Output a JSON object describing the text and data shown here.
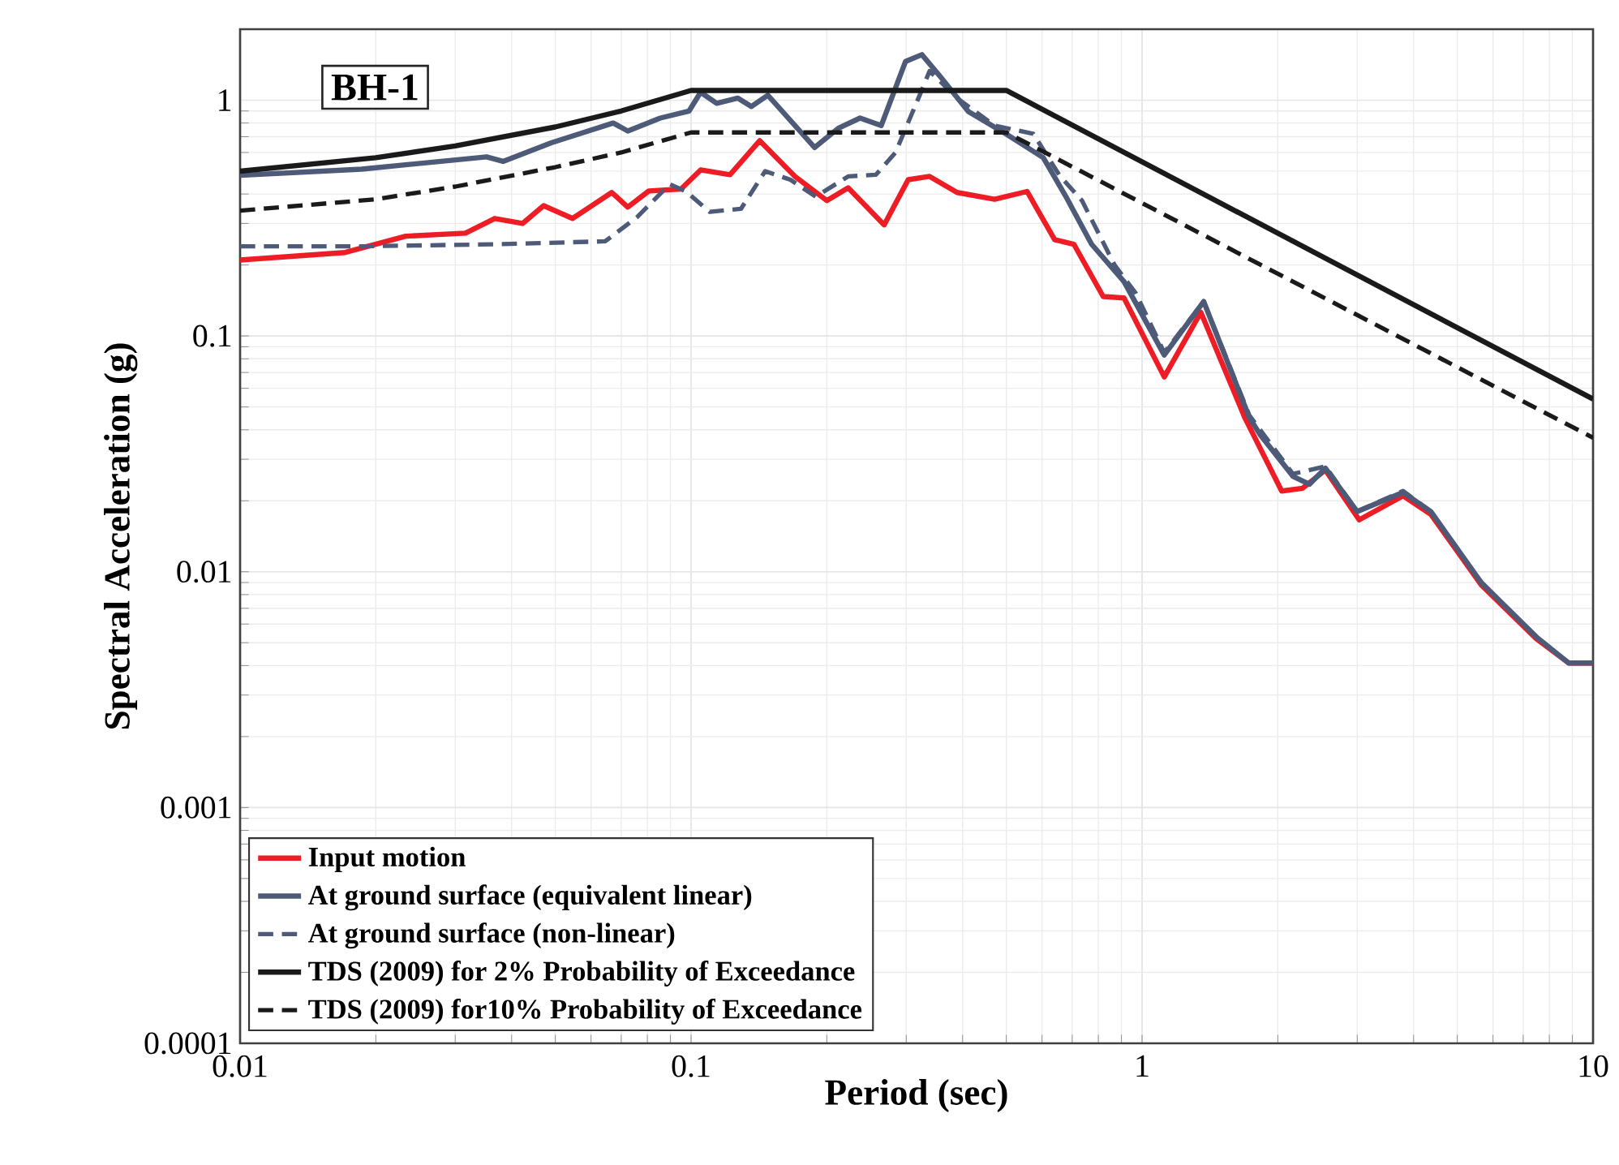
{
  "chart_data": {
    "type": "line",
    "xlabel": "Period (sec)",
    "ylabel": "Spectral Acceleration (g)",
    "log": "xy",
    "grid": true,
    "legend": "bottom left",
    "marker": "none",
    "xlim": [
      0.01,
      10
    ],
    "xticks": [
      0.01,
      0.1,
      1,
      10
    ],
    "ylim": [
      0.0001,
      2
    ],
    "yticks": [
      0.0001,
      0.001,
      0.01,
      0.1,
      1
    ],
    "annotations": [
      "BH-1"
    ],
    "series": [
      {
        "name": "Input motion",
        "color": "#ee1c25",
        "line_style": "solid",
        "x": [
          0.01,
          0.0171,
          0.0233,
          0.0316,
          0.0367,
          0.0423,
          0.0471,
          0.0546,
          0.0667,
          0.0724,
          0.0806,
          0.095,
          0.105,
          0.122,
          0.142,
          0.17,
          0.2,
          0.223,
          0.268,
          0.303,
          0.338,
          0.389,
          0.471,
          0.556,
          0.64,
          0.706,
          0.82,
          0.912,
          1.12,
          1.35,
          1.69,
          2.04,
          2.27,
          2.55,
          3.03,
          3.79,
          4.37,
          5.65,
          7.48,
          8.83,
          10
        ],
        "values": [
          0.21,
          0.226,
          0.265,
          0.273,
          0.315,
          0.3,
          0.357,
          0.315,
          0.406,
          0.352,
          0.412,
          0.42,
          0.506,
          0.483,
          0.673,
          0.475,
          0.375,
          0.425,
          0.296,
          0.46,
          0.475,
          0.406,
          0.38,
          0.41,
          0.256,
          0.245,
          0.147,
          0.145,
          0.067,
          0.126,
          0.045,
          0.022,
          0.0226,
          0.027,
          0.0166,
          0.021,
          0.0175,
          0.0088,
          0.0052,
          0.0041,
          0.0041
        ]
      },
      {
        "name": "At ground surface (equivalent linear)",
        "color": "#4d5a78",
        "line_style": "solid",
        "x": [
          0.01,
          0.0186,
          0.0352,
          0.0383,
          0.049,
          0.0565,
          0.0672,
          0.0724,
          0.0855,
          0.099,
          0.105,
          0.114,
          0.127,
          0.136,
          0.148,
          0.188,
          0.212,
          0.237,
          0.264,
          0.299,
          0.325,
          0.358,
          0.412,
          0.499,
          0.604,
          0.678,
          0.773,
          0.912,
          1.12,
          1.37,
          1.73,
          1.83,
          2.16,
          2.35,
          2.55,
          3.0,
          3.79,
          4.37,
          5.65,
          7.48,
          8.83,
          10
        ],
        "values": [
          0.48,
          0.51,
          0.575,
          0.55,
          0.66,
          0.72,
          0.8,
          0.74,
          0.84,
          0.9,
          1.08,
          0.97,
          1.02,
          0.94,
          1.05,
          0.63,
          0.76,
          0.84,
          0.78,
          1.46,
          1.56,
          1.25,
          0.895,
          0.72,
          0.57,
          0.39,
          0.245,
          0.17,
          0.083,
          0.14,
          0.045,
          0.038,
          0.0254,
          0.0235,
          0.0275,
          0.018,
          0.0217,
          0.018,
          0.009,
          0.0053,
          0.0041,
          0.0041
        ]
      },
      {
        "name": "At ground surface (non-linear)",
        "color": "#4d5a78",
        "line_style": "dashed",
        "x": [
          0.01,
          0.0186,
          0.0374,
          0.0645,
          0.076,
          0.0897,
          0.0975,
          0.11,
          0.129,
          0.146,
          0.166,
          0.189,
          0.223,
          0.257,
          0.284,
          0.322,
          0.338,
          0.389,
          0.471,
          0.574,
          0.656,
          0.736,
          0.869,
          0.968,
          1.12,
          1.37,
          1.73,
          2.16,
          2.55,
          3.0,
          3.79,
          4.37,
          5.65,
          7.48,
          8.83,
          10
        ],
        "values": [
          0.24,
          0.24,
          0.245,
          0.252,
          0.32,
          0.44,
          0.41,
          0.336,
          0.346,
          0.5,
          0.46,
          0.39,
          0.475,
          0.483,
          0.6,
          1.06,
          1.33,
          1.02,
          0.78,
          0.72,
          0.48,
          0.375,
          0.2,
          0.152,
          0.085,
          0.14,
          0.046,
          0.026,
          0.028,
          0.018,
          0.022,
          0.018,
          0.009,
          0.0053,
          0.0041,
          0.0041
        ]
      },
      {
        "name": "TDS (2009) for 2% Probability of Exceedance",
        "color": "#1a1a1a",
        "line_style": "solid",
        "x": [
          0.01,
          0.02,
          0.03,
          0.05,
          0.07,
          0.1,
          0.5,
          10
        ],
        "values": [
          0.5,
          0.57,
          0.64,
          0.77,
          0.9,
          1.1,
          1.1,
          0.054
        ]
      },
      {
        "name": "TDS (2009) for10% Probability of Exceedance",
        "color": "#1a1a1a",
        "line_style": "dashed",
        "x": [
          0.01,
          0.02,
          0.03,
          0.05,
          0.07,
          0.1,
          0.5,
          10
        ],
        "values": [
          0.34,
          0.38,
          0.43,
          0.52,
          0.6,
          0.73,
          0.73,
          0.037
        ]
      }
    ]
  }
}
